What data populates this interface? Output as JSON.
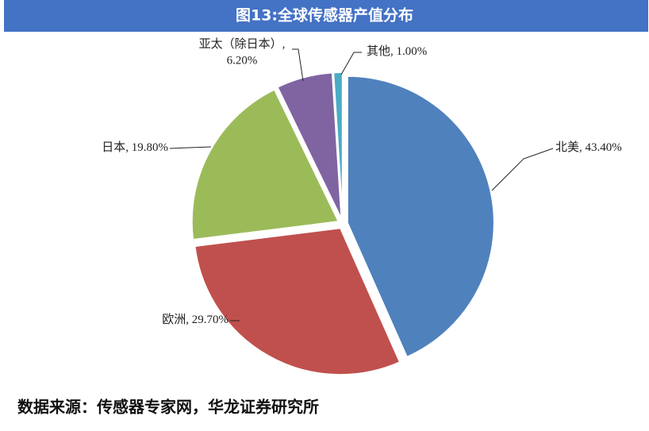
{
  "chart_data": {
    "type": "pie",
    "title": "图13:全球传感器产值分布",
    "categories": [
      "北美",
      "欧洲",
      "日本",
      "亚太（除日本）",
      "其他"
    ],
    "values": [
      43.4,
      29.7,
      19.8,
      6.2,
      1.0
    ],
    "value_labels": [
      "43.40%",
      "29.70%",
      "19.80%",
      "6.20%",
      "1.00%"
    ],
    "colors": [
      "#4f81bd",
      "#c0504d",
      "#9bbb59",
      "#8064a2",
      "#4bacc6"
    ],
    "source": "数据来源：传感器专家网，华龙证券研究所"
  }
}
